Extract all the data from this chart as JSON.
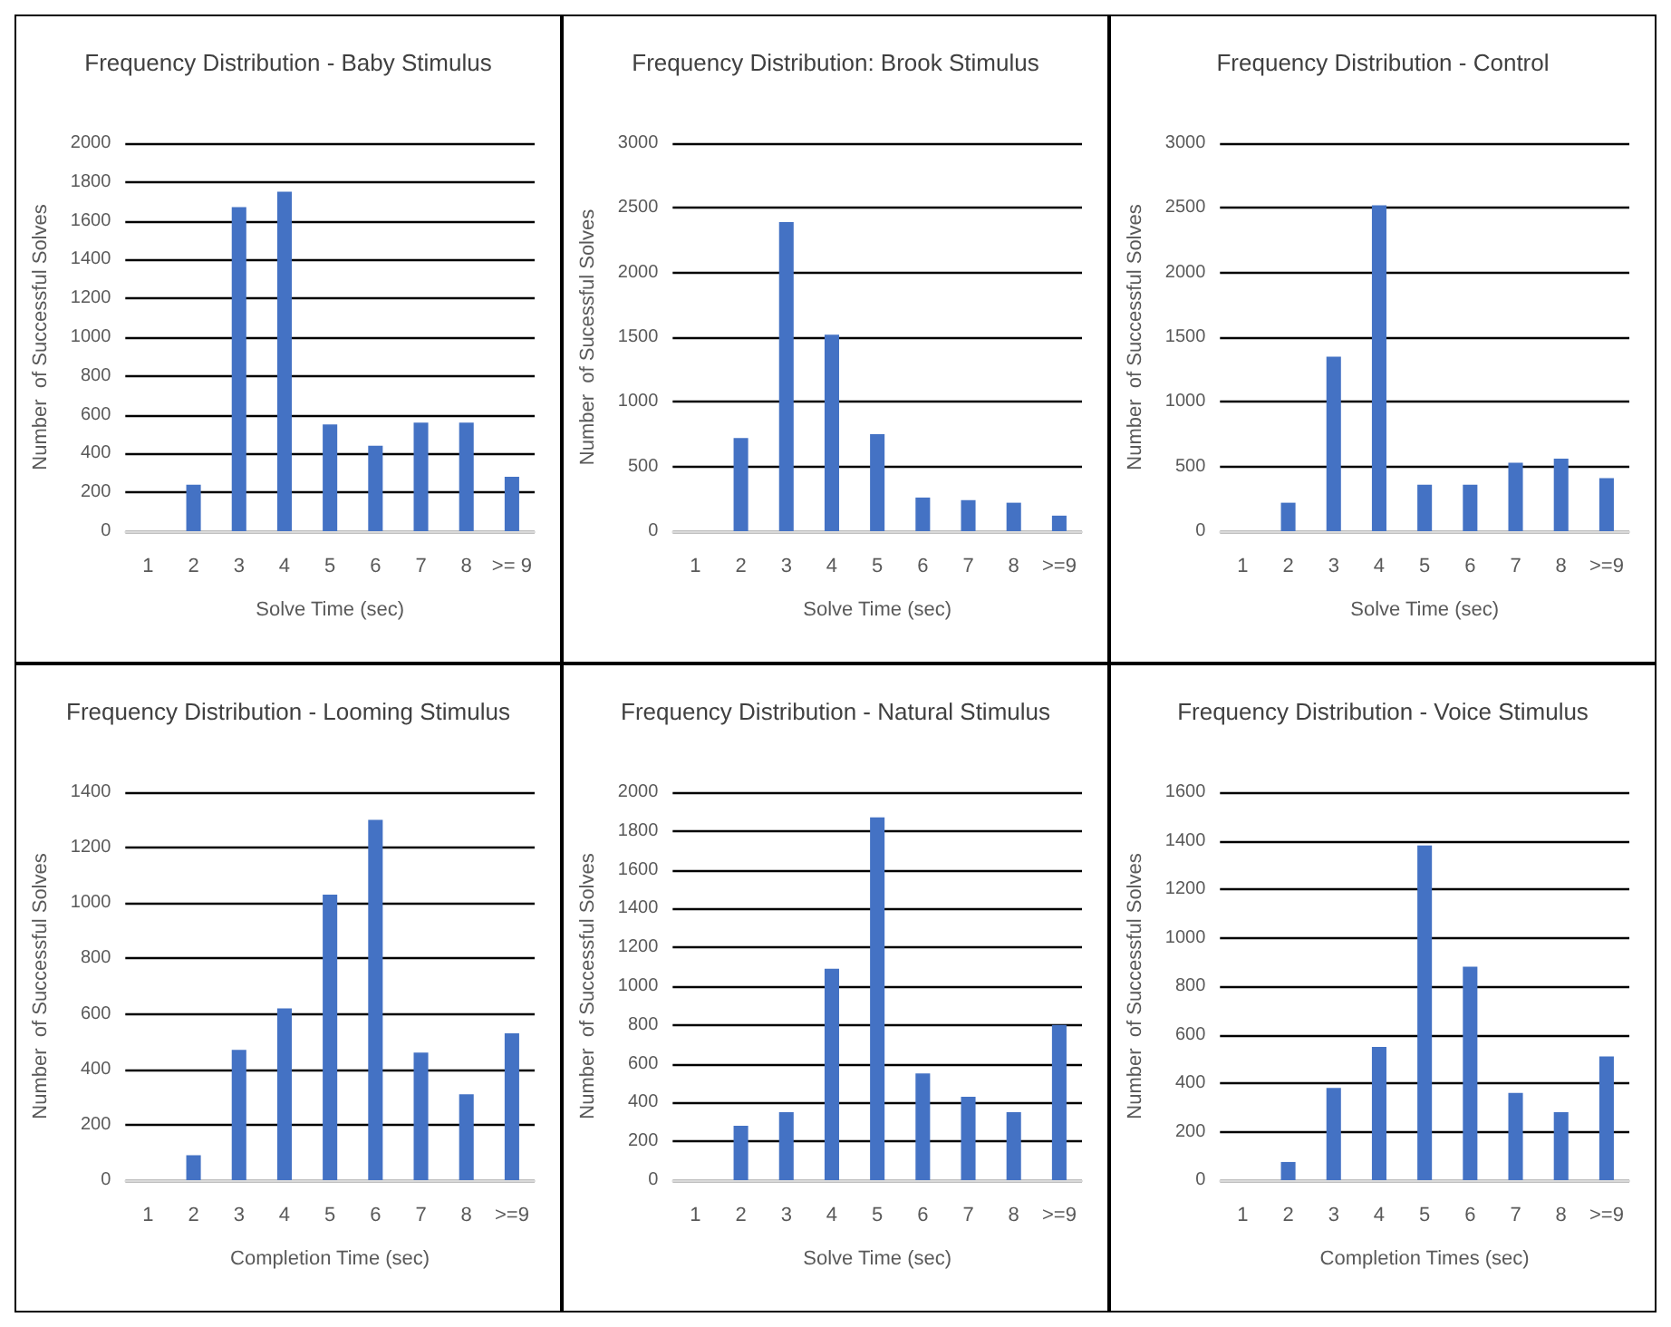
{
  "chart_data": [
    {
      "type": "bar",
      "title": "Frequency Distribution - Baby Stimulus",
      "xlabel": "Solve Time (sec)",
      "ylabel": "Number  of Successful Solves",
      "categories": [
        "1",
        "2",
        "3",
        "4",
        "5",
        "6",
        "7",
        "8",
        ">= 9"
      ],
      "values": [
        0,
        240,
        1670,
        1750,
        550,
        440,
        560,
        560,
        280
      ],
      "color": "#4472c4",
      "ylim": [
        0,
        2000
      ],
      "yticks": [
        0,
        200,
        400,
        600,
        800,
        1000,
        1200,
        1400,
        1600,
        1800,
        2000
      ],
      "grid": "y"
    },
    {
      "type": "bar",
      "title": "Frequency Distribution: Brook Stimulus",
      "xlabel": "Solve Time (sec)",
      "ylabel": "Number  of Sucessful Solves",
      "categories": [
        "1",
        "2",
        "3",
        "4",
        "5",
        "6",
        "7",
        "8",
        ">=9"
      ],
      "values": [
        0,
        720,
        2390,
        1520,
        750,
        260,
        240,
        220,
        120
      ],
      "color": "#4472c4",
      "ylim": [
        0,
        3000
      ],
      "yticks": [
        0,
        500,
        1000,
        1500,
        2000,
        2500,
        3000
      ],
      "grid": "y"
    },
    {
      "type": "bar",
      "title": "Frequency Distribution - Control",
      "xlabel": "Solve Time (sec)",
      "ylabel": "Number  of Successful Solves",
      "categories": [
        "1",
        "2",
        "3",
        "4",
        "5",
        "6",
        "7",
        "8",
        ">=9"
      ],
      "values": [
        0,
        220,
        1350,
        2520,
        360,
        360,
        530,
        560,
        410
      ],
      "color": "#4472c4",
      "ylim": [
        0,
        3000
      ],
      "yticks": [
        0,
        500,
        1000,
        1500,
        2000,
        2500,
        3000
      ],
      "grid": "y"
    },
    {
      "type": "bar",
      "title": "Frequency Distribution - Looming Stimulus",
      "xlabel": "Completion Time (sec)",
      "ylabel": "Number  of Successful Solves",
      "categories": [
        "1",
        "2",
        "3",
        "4",
        "5",
        "6",
        "7",
        "8",
        ">=9"
      ],
      "values": [
        0,
        90,
        470,
        620,
        1030,
        1300,
        460,
        310,
        530
      ],
      "color": "#4472c4",
      "ylim": [
        0,
        1400
      ],
      "yticks": [
        0,
        200,
        400,
        600,
        800,
        1000,
        1200,
        1400
      ],
      "grid": "y"
    },
    {
      "type": "bar",
      "title": "Frequency Distribution - Natural Stimulus",
      "xlabel": "Solve Time (sec)",
      "ylabel": "Number  of Successful Solves",
      "categories": [
        "1",
        "2",
        "3",
        "4",
        "5",
        "6",
        "7",
        "8",
        ">=9"
      ],
      "values": [
        0,
        280,
        350,
        1090,
        1870,
        550,
        430,
        350,
        800
      ],
      "color": "#4472c4",
      "ylim": [
        0,
        2000
      ],
      "yticks": [
        0,
        200,
        400,
        600,
        800,
        1000,
        1200,
        1400,
        1600,
        1800,
        2000
      ],
      "grid": "y"
    },
    {
      "type": "bar",
      "title": "Frequency Distribution - Voice Stimulus",
      "xlabel": "Completion Times (sec)",
      "ylabel": "Number  of Successful Solves",
      "categories": [
        "1",
        "2",
        "3",
        "4",
        "5",
        "6",
        "7",
        "8",
        ">=9"
      ],
      "values": [
        0,
        75,
        380,
        550,
        1380,
        880,
        360,
        280,
        510
      ],
      "color": "#4472c4",
      "ylim": [
        0,
        1600
      ],
      "yticks": [
        0,
        200,
        400,
        600,
        800,
        1000,
        1200,
        1400,
        1600
      ],
      "grid": "y"
    }
  ]
}
